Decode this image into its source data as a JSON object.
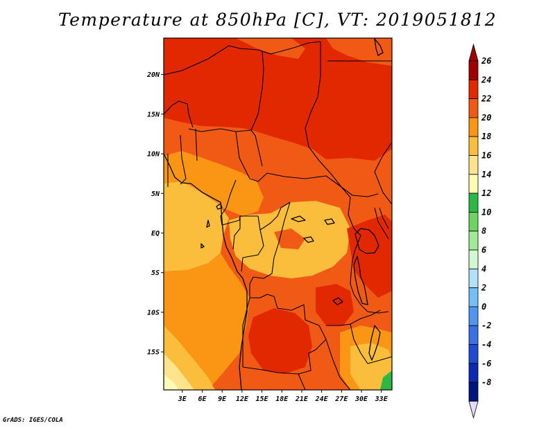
{
  "title": "Temperature at 850hPa [C], VT: 2019051812",
  "credit": "GrADS: IGES/COLA",
  "map": {
    "variable": "Temperature at 850hPa",
    "units": "C",
    "valid_time": "2019051812",
    "lon_range": [
      0.2,
      34.6
    ],
    "lat_range": [
      -19.8,
      24.6
    ],
    "lat_ticks": [
      {
        "value": 20,
        "label": "20N"
      },
      {
        "value": 15,
        "label": "15N"
      },
      {
        "value": 10,
        "label": "10N"
      },
      {
        "value": 5,
        "label": "5N"
      },
      {
        "value": 0,
        "label": "EQ"
      },
      {
        "value": -5,
        "label": "5S"
      },
      {
        "value": -10,
        "label": "10S"
      },
      {
        "value": -15,
        "label": "15S"
      }
    ],
    "lon_ticks": [
      {
        "value": 3,
        "label": "3E"
      },
      {
        "value": 6,
        "label": "6E"
      },
      {
        "value": 9,
        "label": "9E"
      },
      {
        "value": 12,
        "label": "12E"
      },
      {
        "value": 15,
        "label": "15E"
      },
      {
        "value": 18,
        "label": "18E"
      },
      {
        "value": 21,
        "label": "21E"
      },
      {
        "value": 24,
        "label": "24E"
      },
      {
        "value": 27,
        "label": "27E"
      },
      {
        "value": 30,
        "label": "30E"
      },
      {
        "value": 33,
        "label": "33E"
      }
    ]
  },
  "colorbar": {
    "levels": [
      {
        "label": "26",
        "color": "#a00000"
      },
      {
        "label": "24",
        "color": "#e12800"
      },
      {
        "label": "22",
        "color": "#f05a14"
      },
      {
        "label": "20",
        "color": "#fa9614"
      },
      {
        "label": "18",
        "color": "#fabe3c"
      },
      {
        "label": "16",
        "color": "#fde38c"
      },
      {
        "label": "14",
        "color": "#fffab4"
      },
      {
        "label": "12",
        "color": "#2db846"
      },
      {
        "label": "10",
        "color": "#6ed264"
      },
      {
        "label": "8",
        "color": "#a0ea96"
      },
      {
        "label": "6",
        "color": "#d2f8d2"
      },
      {
        "label": "4",
        "color": "#b4e1fa"
      },
      {
        "label": "2",
        "color": "#78bef6"
      },
      {
        "label": "0",
        "color": "#5096f0"
      },
      {
        "label": "-2",
        "color": "#3c6ee6"
      },
      {
        "label": "-4",
        "color": "#1e4bd2"
      },
      {
        "label": "-6",
        "color": "#0f28b4"
      },
      {
        "label": "-8",
        "color": "#00147d"
      }
    ],
    "top_color": "#a00000",
    "bottom_color": "#e1dcff"
  }
}
